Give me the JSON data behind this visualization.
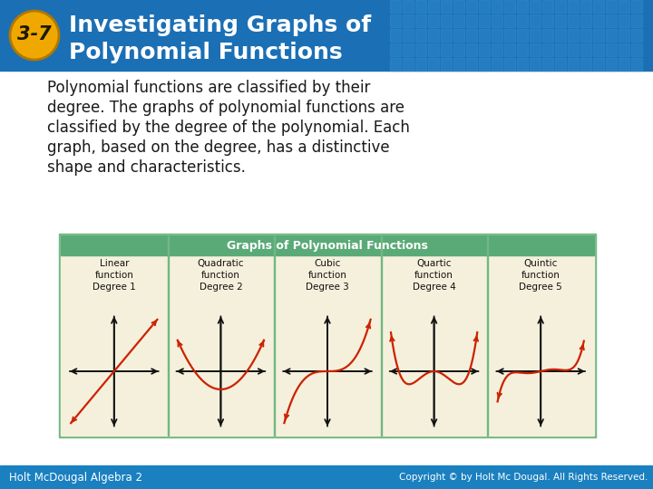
{
  "title_badge": "3-7",
  "title_line1": "Investigating Graphs of",
  "title_line2": "Polynomial Functions",
  "header_bg_color": "#1b6fb5",
  "header_text_color": "#ffffff",
  "badge_bg_color": "#f0a800",
  "badge_text_color": "#1a1a00",
  "body_bg_color": "#ffffff",
  "body_text_lines": [
    "Polynomial functions are classified by their",
    "degree. The graphs of polynomial functions are",
    "classified by the degree of the polynomial. Each",
    "graph, based on the degree, has a distinctive",
    "shape and characteristics."
  ],
  "body_text_color": "#1a1a1a",
  "table_header": "Graphs of Polynomial Functions",
  "table_header_bg": "#5aaa78",
  "table_bg": "#f5f0dc",
  "table_border_color": "#70b882",
  "table_labels": [
    "Linear\nfunction\nDegree 1",
    "Quadratic\nfunction\nDegree 2",
    "Cubic\nfunction\nDegree 3",
    "Quartic\nfunction\nDegree 4",
    "Quintic\nfunction\nDegree 5"
  ],
  "footer_bg_color": "#1a80c0",
  "footer_text_left": "Holt McDougal Algebra 2",
  "footer_text_right": "Copyright © by Holt Mc Dougal.",
  "footer_text_right_bold": "All Rights Reserved.",
  "footer_text_color": "#ffffff",
  "curve_color": "#cc2200",
  "axis_color": "#111111",
  "grid_color": "#2e88cc"
}
